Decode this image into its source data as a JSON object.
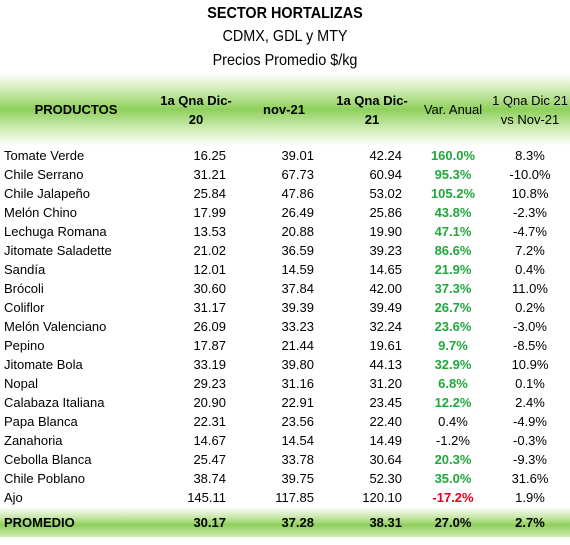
{
  "header": {
    "title": "SECTOR HORTALIZAS",
    "subtitle": "CDMX, GDL y MTY",
    "units": "Precios Promedio $/kg"
  },
  "columns": [
    "PRODUCTOS",
    "1a Qna Dic-20",
    "nov-21",
    "1a Qna Dic-21",
    "Var. Anual",
    "1 Qna Dic 21 vs Nov-21"
  ],
  "colors": {
    "positive_highlight": "#21a83c",
    "negative_highlight": "#e5001a",
    "header_band": "#8fd05c"
  },
  "rows": [
    {
      "product": "Tomate Verde",
      "dic20": "16.25",
      "nov21": "39.01",
      "dic21": "42.24",
      "var_anual": "160.0%",
      "var_style": "pos",
      "var_mensual": "8.3%"
    },
    {
      "product": "Chile Serrano",
      "dic20": "31.21",
      "nov21": "67.73",
      "dic21": "60.94",
      "var_anual": "95.3%",
      "var_style": "pos",
      "var_mensual": "-10.0%"
    },
    {
      "product": "Chile Jalapeño",
      "dic20": "25.84",
      "nov21": "47.86",
      "dic21": "53.02",
      "var_anual": "105.2%",
      "var_style": "pos",
      "var_mensual": "10.8%"
    },
    {
      "product": "Melón Chino",
      "dic20": "17.99",
      "nov21": "26.49",
      "dic21": "25.86",
      "var_anual": "43.8%",
      "var_style": "pos",
      "var_mensual": "-2.3%"
    },
    {
      "product": "Lechuga Romana",
      "dic20": "13.53",
      "nov21": "20.88",
      "dic21": "19.90",
      "var_anual": "47.1%",
      "var_style": "pos",
      "var_mensual": "-4.7%"
    },
    {
      "product": "Jitomate Saladette",
      "dic20": "21.02",
      "nov21": "36.59",
      "dic21": "39.23",
      "var_anual": "86.6%",
      "var_style": "pos",
      "var_mensual": "7.2%"
    },
    {
      "product": "Sandía",
      "dic20": "12.01",
      "nov21": "14.59",
      "dic21": "14.65",
      "var_anual": "21.9%",
      "var_style": "pos",
      "var_mensual": "0.4%"
    },
    {
      "product": "Brócoli",
      "dic20": "30.60",
      "nov21": "37.84",
      "dic21": "42.00",
      "var_anual": "37.3%",
      "var_style": "pos",
      "var_mensual": "11.0%"
    },
    {
      "product": "Coliflor",
      "dic20": "31.17",
      "nov21": "39.39",
      "dic21": "39.49",
      "var_anual": "26.7%",
      "var_style": "pos",
      "var_mensual": "0.2%"
    },
    {
      "product": "Melón Valenciano",
      "dic20": "26.09",
      "nov21": "33.23",
      "dic21": "32.24",
      "var_anual": "23.6%",
      "var_style": "pos",
      "var_mensual": "-3.0%"
    },
    {
      "product": "Pepino",
      "dic20": "17.87",
      "nov21": "21.44",
      "dic21": "19.61",
      "var_anual": "9.7%",
      "var_style": "pos",
      "var_mensual": "-8.5%"
    },
    {
      "product": "Jitomate Bola",
      "dic20": "33.19",
      "nov21": "39.80",
      "dic21": "44.13",
      "var_anual": "32.9%",
      "var_style": "pos",
      "var_mensual": "10.9%"
    },
    {
      "product": "Nopal",
      "dic20": "29.23",
      "nov21": "31.16",
      "dic21": "31.20",
      "var_anual": "6.8%",
      "var_style": "pos",
      "var_mensual": "0.1%"
    },
    {
      "product": "Calabaza Italiana",
      "dic20": "20.90",
      "nov21": "22.91",
      "dic21": "23.45",
      "var_anual": "12.2%",
      "var_style": "pos",
      "var_mensual": "2.4%"
    },
    {
      "product": "Papa Blanca",
      "dic20": "22.31",
      "nov21": "23.56",
      "dic21": "22.40",
      "var_anual": "0.4%",
      "var_style": "plain",
      "var_mensual": "-4.9%"
    },
    {
      "product": "Zanahoria",
      "dic20": "14.67",
      "nov21": "14.54",
      "dic21": "14.49",
      "var_anual": "-1.2%",
      "var_style": "plain",
      "var_mensual": "-0.3%"
    },
    {
      "product": "Cebolla Blanca",
      "dic20": "25.47",
      "nov21": "33.78",
      "dic21": "30.64",
      "var_anual": "20.3%",
      "var_style": "pos",
      "var_mensual": "-9.3%"
    },
    {
      "product": "Chile Poblano",
      "dic20": "38.74",
      "nov21": "39.75",
      "dic21": "52.30",
      "var_anual": "35.0%",
      "var_style": "pos",
      "var_mensual": "31.6%"
    },
    {
      "product": "Ajo",
      "dic20": "145.11",
      "nov21": "117.85",
      "dic21": "120.10",
      "var_anual": "-17.2%",
      "var_style": "neg",
      "var_mensual": "1.9%"
    }
  ],
  "total": {
    "label": "PROMEDIO",
    "dic20": "30.17",
    "nov21": "37.28",
    "dic21": "38.31",
    "var_anual": "27.0%",
    "var_mensual": "2.7%"
  }
}
